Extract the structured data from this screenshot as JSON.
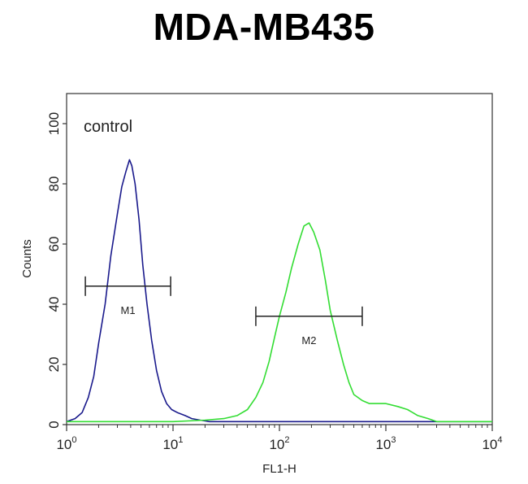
{
  "chart_data": {
    "type": "line",
    "title": "MDA-MB435",
    "xlabel": "FL1-H",
    "ylabel": "Counts",
    "x_scale": "log",
    "xlim": [
      1,
      10000
    ],
    "ylim": [
      0,
      110
    ],
    "x_ticks": [
      {
        "value": 1,
        "base": "10",
        "exp": "0"
      },
      {
        "value": 10,
        "base": "10",
        "exp": "1"
      },
      {
        "value": 100,
        "base": "10",
        "exp": "2"
      },
      {
        "value": 1000,
        "base": "10",
        "exp": "3"
      },
      {
        "value": 10000,
        "base": "10",
        "exp": "4"
      }
    ],
    "y_ticks": [
      0,
      20,
      40,
      60,
      80,
      100
    ],
    "grid": false,
    "annotation": "control",
    "series": [
      {
        "color": "#1a1a8c",
        "x": [
          1,
          1.2,
          1.4,
          1.6,
          1.8,
          2.0,
          2.3,
          2.6,
          3.0,
          3.3,
          3.6,
          3.9,
          4.1,
          4.4,
          4.8,
          5.2,
          5.7,
          6.3,
          7.0,
          7.8,
          8.7,
          9.7,
          11,
          13,
          15,
          18,
          22,
          30,
          50,
          100,
          300,
          1000,
          10000
        ],
        "y": [
          1,
          2,
          4,
          9,
          16,
          27,
          40,
          56,
          70,
          79,
          84,
          88,
          86,
          80,
          68,
          53,
          40,
          28,
          18,
          11,
          7,
          5,
          4,
          3,
          2,
          1.5,
          1,
          1,
          1,
          1,
          1,
          1,
          1
        ]
      },
      {
        "color": "#33dd33",
        "x": [
          1,
          5,
          10,
          20,
          30,
          40,
          50,
          60,
          70,
          80,
          90,
          100,
          115,
          130,
          150,
          170,
          190,
          210,
          240,
          270,
          300,
          350,
          400,
          450,
          500,
          600,
          700,
          800,
          1000,
          1300,
          1600,
          2000,
          2500,
          3000,
          5000,
          10000
        ],
        "y": [
          1,
          1,
          1,
          1.5,
          2,
          3,
          5,
          9,
          14,
          21,
          29,
          36,
          44,
          52,
          60,
          66,
          67,
          64,
          58,
          48,
          38,
          28,
          20,
          14,
          10,
          8,
          7,
          7,
          7,
          6,
          5,
          3,
          2,
          1,
          1,
          1
        ]
      }
    ],
    "markers": [
      {
        "label": "M1",
        "x_start": 1.5,
        "x_end": 9.5,
        "y": 46
      },
      {
        "label": "M2",
        "x_start": 60,
        "x_end": 600,
        "y": 36
      }
    ]
  }
}
